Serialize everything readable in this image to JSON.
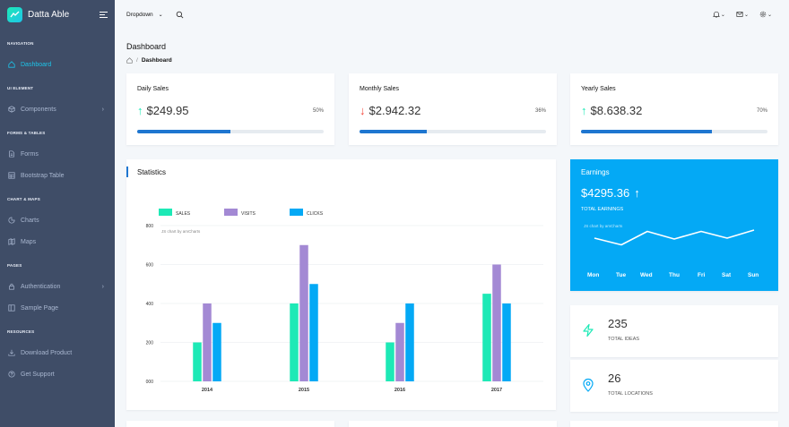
{
  "brand": {
    "name": "Datta Able"
  },
  "nav": {
    "captions": [
      "NAVIGATION",
      "UI ELEMENT",
      "FORMS & TABLES",
      "CHART & MAPS",
      "PAGES",
      "RESOURCES"
    ],
    "items": [
      {
        "label": "Dashboard",
        "icon": "home-icon",
        "active": true
      },
      {
        "label": "Components",
        "icon": "box-icon",
        "chevron": true
      },
      {
        "label": "Forms",
        "icon": "file-text-icon"
      },
      {
        "label": "Bootstrap Table",
        "icon": "table-icon"
      },
      {
        "label": "Charts",
        "icon": "pie-chart-icon"
      },
      {
        "label": "Maps",
        "icon": "map-icon"
      },
      {
        "label": "Authentication",
        "icon": "lock-icon",
        "chevron": true
      },
      {
        "label": "Sample Page",
        "icon": "sidebar-icon"
      },
      {
        "label": "Download Product",
        "icon": "download-icon"
      },
      {
        "label": "Get Support",
        "icon": "help-circle-icon"
      }
    ]
  },
  "header": {
    "dropdown_label": "Dropdown"
  },
  "page": {
    "title": "Dashboard",
    "breadcrumb": "Dashboard"
  },
  "sales": [
    {
      "title": "Daily Sales",
      "value": "$249.95",
      "trend": "up",
      "percent": "50%",
      "progress": 0.5
    },
    {
      "title": "Monthly Sales",
      "value": "$2.942.32",
      "trend": "down",
      "percent": "36%",
      "progress": 0.36
    },
    {
      "title": "Yearly Sales",
      "value": "$8.638.32",
      "trend": "up",
      "percent": "70%",
      "progress": 0.7
    }
  ],
  "statistics": {
    "title": "Statistics",
    "credit": "JS chart by amCharts"
  },
  "chart_data": {
    "type": "bar",
    "categories": [
      "2014",
      "2015",
      "2016",
      "2017"
    ],
    "series": [
      {
        "name": "SALES",
        "color": "#1de9b6",
        "values": [
          200,
          400,
          200,
          450
        ]
      },
      {
        "name": "VISITS",
        "color": "#a389d4",
        "values": [
          400,
          700,
          300,
          600
        ]
      },
      {
        "name": "CLICKS",
        "color": "#04a9f5",
        "values": [
          300,
          500,
          400,
          400
        ]
      }
    ],
    "yticks": [
      "000",
      "200",
      "400",
      "600",
      "800"
    ],
    "ylim": [
      0,
      800
    ],
    "legend": "top-left",
    "grid": true
  },
  "earnings": {
    "title": "Earnings",
    "value": "$4295.36",
    "subtitle": "TOTAL EARNINGS",
    "credit": "JS chart by amCharts",
    "days": [
      "Mon",
      "Tue",
      "Wed",
      "Thu",
      "Fri",
      "Sat",
      "Sun"
    ],
    "trend": [
      60,
      45,
      75,
      58,
      75,
      60,
      78
    ]
  },
  "metrics": [
    {
      "value": "235",
      "label": "TOTAL IDEAS",
      "icon": "zap-icon",
      "color": "#1de9b6"
    },
    {
      "value": "26",
      "label": "TOTAL LOCATIONS",
      "icon": "map-pin-icon",
      "color": "#04a9f5"
    }
  ]
}
